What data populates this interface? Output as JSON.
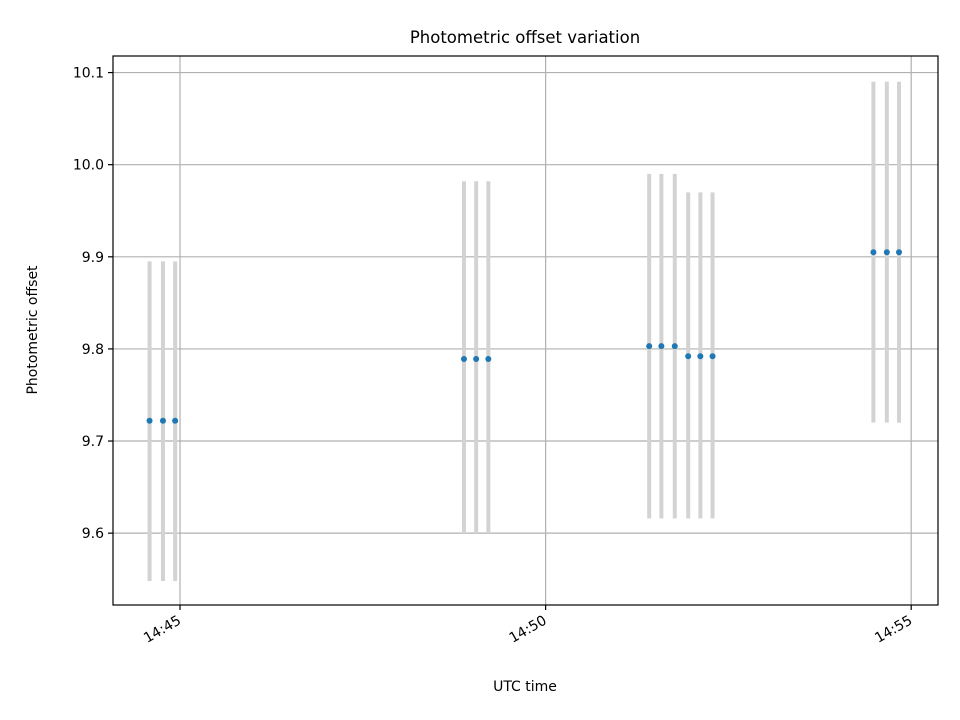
{
  "chart_data": {
    "type": "scatter",
    "title": "Photometric offset variation",
    "xlabel": "UTC time",
    "ylabel": "Photometric offset",
    "xlim": [
      "14:44:05",
      "14:55:22"
    ],
    "ylim": [
      9.522,
      10.118
    ],
    "x_ticks": [
      "14:45",
      "14:50",
      "14:55"
    ],
    "y_ticks": [
      "9.6",
      "9.7",
      "9.8",
      "9.9",
      "10.0",
      "10.1"
    ],
    "grid": true,
    "legend": "none",
    "colors": {
      "point": "#1f77b4",
      "errorbar": "#d3d3d3"
    },
    "series": [
      {
        "points": [
          {
            "x": "14:44:35",
            "y": 9.722,
            "ylow": 9.548,
            "yhigh": 9.895
          },
          {
            "x": "14:44:46",
            "y": 9.722,
            "ylow": 9.548,
            "yhigh": 9.895
          },
          {
            "x": "14:44:56",
            "y": 9.722,
            "ylow": 9.548,
            "yhigh": 9.895
          },
          {
            "x": "14:48:53",
            "y": 9.789,
            "ylow": 9.6,
            "yhigh": 9.982
          },
          {
            "x": "14:49:03",
            "y": 9.789,
            "ylow": 9.6,
            "yhigh": 9.982
          },
          {
            "x": "14:49:13",
            "y": 9.789,
            "ylow": 9.6,
            "yhigh": 9.982
          },
          {
            "x": "14:51:25",
            "y": 9.803,
            "ylow": 9.616,
            "yhigh": 9.99
          },
          {
            "x": "14:51:35",
            "y": 9.803,
            "ylow": 9.616,
            "yhigh": 9.99
          },
          {
            "x": "14:51:46",
            "y": 9.803,
            "ylow": 9.616,
            "yhigh": 9.99
          },
          {
            "x": "14:51:57",
            "y": 9.792,
            "ylow": 9.616,
            "yhigh": 9.97
          },
          {
            "x": "14:52:07",
            "y": 9.792,
            "ylow": 9.616,
            "yhigh": 9.97
          },
          {
            "x": "14:52:17",
            "y": 9.792,
            "ylow": 9.616,
            "yhigh": 9.97
          },
          {
            "x": "14:54:29",
            "y": 9.905,
            "ylow": 9.72,
            "yhigh": 10.09
          },
          {
            "x": "14:54:40",
            "y": 9.905,
            "ylow": 9.72,
            "yhigh": 10.09
          },
          {
            "x": "14:54:50",
            "y": 9.905,
            "ylow": 9.72,
            "yhigh": 10.09
          }
        ]
      }
    ]
  }
}
